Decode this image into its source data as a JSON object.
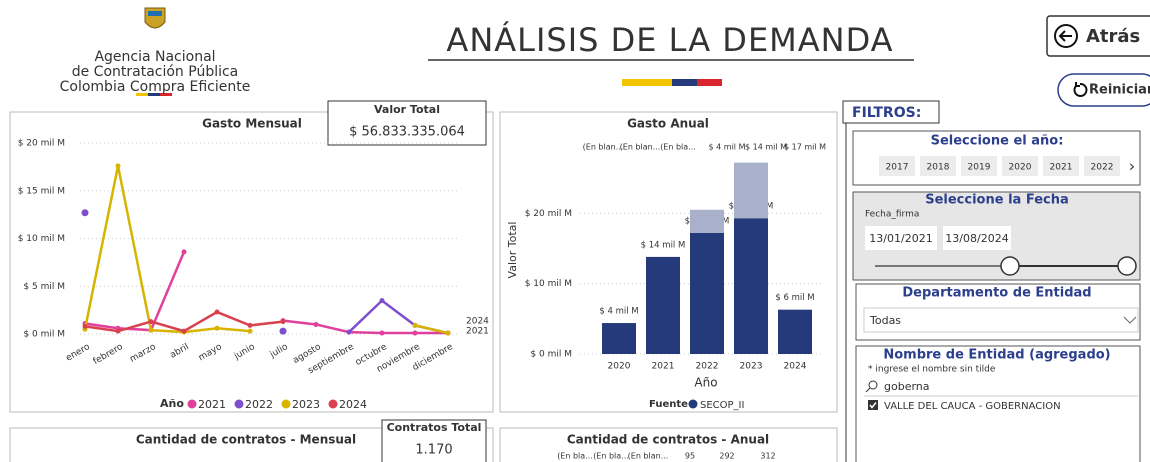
{
  "header": {
    "org": [
      "Agencia Nacional",
      "de Contratación Pública",
      "Colombia Compra Eficiente"
    ],
    "title": "ANÁLISIS DE LA DEMANDA",
    "back": "Atrás",
    "reset": "Reiniciar"
  },
  "cards": [
    {
      "label": "Valor Total",
      "value": "$ 56.833.335.064"
    },
    {
      "label": "Contratos Total",
      "value": "1.170"
    }
  ],
  "chart_data": [
    {
      "type": "line",
      "title": "Gasto Mensual",
      "categories": [
        "enero",
        "febrero",
        "marzo",
        "abril",
        "mayo",
        "junio",
        "julio",
        "agosto",
        "septiembre",
        "octubre",
        "noviembre",
        "diciembre"
      ],
      "series": [
        {
          "name": "2021",
          "color": "#e0409c",
          "values": [
            1.1,
            0.6,
            0.4,
            8.6,
            null,
            null,
            1.4,
            1.0,
            0.2,
            0.1,
            0.1,
            0.1
          ]
        },
        {
          "name": "2022",
          "color": "#7e4fcc",
          "values": [
            12.7,
            null,
            null,
            null,
            null,
            null,
            0.3,
            null,
            0.2,
            3.5,
            0.9,
            0.1
          ]
        },
        {
          "name": "2023",
          "color": "#d6b400",
          "values": [
            0.5,
            17.6,
            0.4,
            0.2,
            0.6,
            0.3,
            null,
            null,
            null,
            null,
            0.9,
            0.1
          ]
        },
        {
          "name": "2024",
          "color": "#d9414f",
          "values": [
            0.8,
            0.3,
            1.3,
            0.3,
            2.3,
            0.9,
            1.3,
            null,
            null,
            null,
            null,
            null
          ]
        }
      ],
      "ylim": [
        0,
        20
      ],
      "yticks": [
        {
          "value": 0,
          "label": "$ 0 mil M"
        },
        {
          "value": 5,
          "label": "$ 5 mil M"
        },
        {
          "value": 10,
          "label": "$ 10 mil M"
        },
        {
          "value": 15,
          "label": "$ 15 mil M"
        },
        {
          "value": 20,
          "label": "$ 20 mil M"
        }
      ],
      "grid": true,
      "legend_title": "Año",
      "annotations": [
        "2024",
        "2021"
      ]
    },
    {
      "type": "bar",
      "title": "Gasto Anual",
      "stacked": true,
      "categories": [
        "2020",
        "2021",
        "2022",
        "2023",
        "2024"
      ],
      "series": [
        {
          "name": "SECOP_II",
          "color": "#243a7a",
          "values": [
            4.4,
            13.8,
            17.2,
            19.3,
            6.3
          ],
          "value_labels": [
            "$ 4 mil M",
            "$ 14 mil M",
            "$ 17 mil M",
            "$ 19 mil M",
            "$ 6 mil M"
          ]
        },
        {
          "color": "#a8b1c9",
          "values": [
            0,
            0,
            3.3,
            7.9,
            0
          ]
        }
      ],
      "ylim": [
        0,
        28
      ],
      "yticks": [
        {
          "value": 0,
          "label": "$ 0 mil M"
        },
        {
          "value": 10,
          "label": "$ 10 mil M"
        },
        {
          "value": 20,
          "label": "$ 20 mil M"
        }
      ],
      "grid": true,
      "ylabel": "Valor Total",
      "xlabel": "Año",
      "legend_title": "Fuente",
      "top_labels": [
        "(En blan...",
        "(En blan...",
        "(En bla...",
        "$ 4 mil M",
        "$ 14 mil M",
        "$ 17 mil M"
      ]
    },
    {
      "type": "bar",
      "title": "Cantidad de contratos - Mensual"
    },
    {
      "type": "bar",
      "title": "Cantidad de contratos - Anual",
      "top_labels": [
        "(En bla...",
        "(En bla...",
        "(En blan...",
        "95",
        "292",
        "312"
      ]
    }
  ],
  "filters": {
    "title": "FILTROS:",
    "year": {
      "title": "Seleccione el año:",
      "options": [
        "2017",
        "2018",
        "2019",
        "2020",
        "2021",
        "2022"
      ]
    },
    "date": {
      "title": "Seleccione la Fecha",
      "field": "Fecha_firma",
      "from": "13/01/2021",
      "to": "13/08/2024"
    },
    "department": {
      "title": "Departamento de Entidad",
      "selected": "Todas"
    },
    "entity": {
      "title": "Nombre de Entidad (agregado)",
      "hint": "* ingrese el nombre sin tilde",
      "search": "goberna",
      "items": [
        "VALLE DEL CAUCA - GOBERNACION"
      ]
    }
  }
}
